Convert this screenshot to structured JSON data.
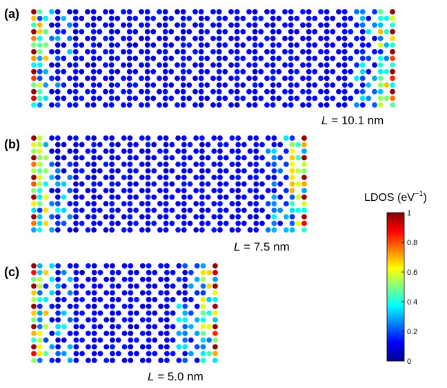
{
  "panels": [
    {
      "label": "(a)",
      "length_var": "L",
      "length_rest": " = 10.1 nm",
      "length_nm": 10.1
    },
    {
      "label": "(b)",
      "length_var": "L",
      "length_rest": " = 7.5 nm",
      "length_nm": 7.5
    },
    {
      "label": "(c)",
      "length_var": "L",
      "length_rest": " = 5.0 nm",
      "length_nm": 5.0
    }
  ],
  "colorbar": {
    "title_prefix": "LDOS (eV",
    "title_exp": "−1",
    "title_suffix": ")",
    "colormap": "jet",
    "range": [
      0,
      1
    ],
    "ticks": [
      "0",
      "0.2",
      "0.4",
      "0.6",
      "0.8",
      "1"
    ]
  }
}
